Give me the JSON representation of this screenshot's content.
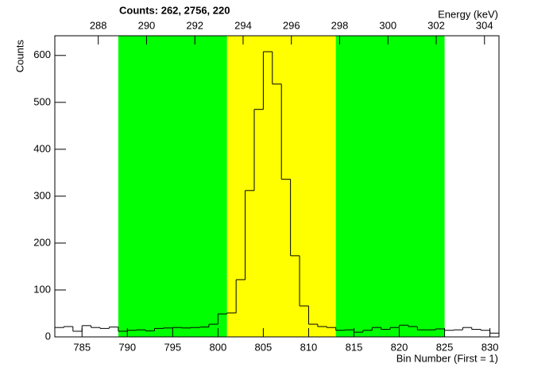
{
  "chart_data": {
    "type": "histogram",
    "title": "Counts:   262,   2756,   220",
    "x_label": "Bin Number (First = 1)",
    "y_label": "Counts",
    "x2_label": "Energy (keV)",
    "bins": [
      782,
      783,
      784,
      785,
      786,
      787,
      788,
      789,
      790,
      791,
      792,
      793,
      794,
      795,
      796,
      797,
      798,
      799,
      800,
      801,
      802,
      803,
      804,
      805,
      806,
      807,
      808,
      809,
      810,
      811,
      812,
      813,
      814,
      815,
      816,
      817,
      818,
      819,
      820,
      821,
      822,
      823,
      824,
      825,
      826,
      827,
      828,
      829,
      830,
      831
    ],
    "counts": [
      20,
      22,
      12,
      24,
      20,
      18,
      21,
      12,
      14,
      15,
      13,
      18,
      19,
      20,
      19,
      20,
      21,
      27,
      49,
      51,
      122,
      312,
      485,
      608,
      539,
      336,
      173,
      66,
      27,
      22,
      20,
      14,
      15,
      10,
      14,
      20,
      16,
      20,
      25,
      22,
      15,
      15,
      17,
      14,
      15,
      20,
      16,
      14,
      8
    ],
    "line_color": "#000000",
    "regions": [
      {
        "color": "#00ff00",
        "range": [
          789,
          801
        ]
      },
      {
        "color": "#ffff00",
        "range": [
          801,
          813
        ]
      },
      {
        "color": "#00ff00",
        "range": [
          813,
          825
        ]
      }
    ],
    "xlim": [
      782,
      831
    ],
    "xticks": [
      785,
      790,
      795,
      800,
      805,
      810,
      815,
      820,
      825,
      830
    ],
    "ylim": [
      0,
      642
    ],
    "yticks": [
      0,
      100,
      200,
      300,
      400,
      500,
      600
    ],
    "x2lim": [
      286.2,
      304.6
    ],
    "x2ticks": [
      288,
      290,
      292,
      294,
      296,
      298,
      300,
      302,
      304
    ]
  }
}
